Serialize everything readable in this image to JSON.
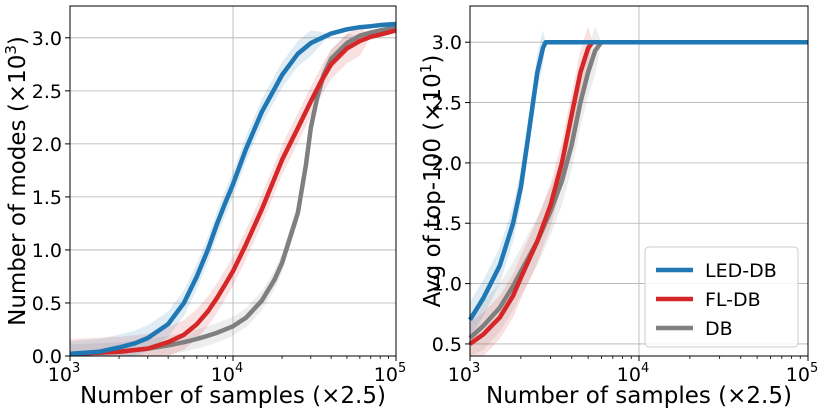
{
  "chart_data": [
    {
      "type": "line",
      "xscale": "log",
      "xlim": [
        1000,
        100000
      ],
      "ylim": [
        0,
        3.3
      ],
      "xticks": [
        1000,
        10000,
        100000
      ],
      "xtick_labels": [
        "10",
        "10",
        "10"
      ],
      "xtick_exps": [
        "3",
        "4",
        "5"
      ],
      "yticks": [
        0,
        0.5,
        1.0,
        1.5,
        2.0,
        2.5,
        3.0
      ],
      "ytick_labels": [
        "0.0",
        "0.5",
        "1.0",
        "1.5",
        "2.0",
        "2.5",
        "3.0"
      ],
      "xlabel": "Number of samples (×2.5)",
      "ylabel_pre": "Number of modes (×10",
      "ylabel_exp": "3",
      "ylabel_post": ")",
      "grid": true,
      "series": [
        {
          "name": "DB",
          "color": "#7f7f7f",
          "x": [
            1000,
            2000,
            3000,
            4000,
            5000,
            6000,
            7000,
            8000,
            10000,
            12000,
            15000,
            18000,
            20000,
            25000,
            28000,
            30000,
            33000,
            36000,
            40000,
            50000,
            60000,
            70000,
            80000,
            100000
          ],
          "y": [
            0.02,
            0.04,
            0.07,
            0.1,
            0.13,
            0.16,
            0.19,
            0.22,
            0.28,
            0.36,
            0.52,
            0.72,
            0.88,
            1.35,
            1.8,
            2.15,
            2.45,
            2.65,
            2.8,
            2.95,
            3.02,
            3.05,
            3.07,
            3.1
          ],
          "band": 0.09
        },
        {
          "name": "FL-DB",
          "color": "#d62728",
          "x": [
            1000,
            2000,
            3000,
            4000,
            5000,
            6000,
            7000,
            8000,
            9000,
            10000,
            12000,
            15000,
            20000,
            25000,
            30000,
            35000,
            40000,
            50000,
            60000,
            70000,
            80000,
            100000
          ],
          "y": [
            0.02,
            0.04,
            0.07,
            0.13,
            0.2,
            0.3,
            0.42,
            0.55,
            0.68,
            0.8,
            1.05,
            1.38,
            1.85,
            2.15,
            2.4,
            2.6,
            2.75,
            2.9,
            2.97,
            3.01,
            3.03,
            3.07
          ],
          "band": 0.14
        },
        {
          "name": "LED-DB",
          "color": "#1f77b4",
          "x": [
            1000,
            1500,
            2000,
            2500,
            3000,
            4000,
            5000,
            6000,
            7000,
            8000,
            9000,
            10000,
            12000,
            15000,
            20000,
            25000,
            30000,
            40000,
            50000,
            60000,
            70000,
            80000,
            100000
          ],
          "y": [
            0.02,
            0.04,
            0.08,
            0.12,
            0.17,
            0.3,
            0.5,
            0.75,
            1.0,
            1.25,
            1.45,
            1.62,
            1.95,
            2.3,
            2.65,
            2.85,
            2.95,
            3.04,
            3.08,
            3.1,
            3.11,
            3.12,
            3.13
          ],
          "band": 0.12
        }
      ]
    },
    {
      "type": "line",
      "xscale": "log",
      "xlim": [
        1000,
        100000
      ],
      "ylim": [
        0.4,
        3.3
      ],
      "xticks": [
        1000,
        10000,
        100000
      ],
      "xtick_labels": [
        "10",
        "10",
        "10"
      ],
      "xtick_exps": [
        "3",
        "4",
        "5"
      ],
      "yticks": [
        0.5,
        1.0,
        1.5,
        2.0,
        2.5,
        3.0
      ],
      "ytick_labels": [
        "0.5",
        "1.0",
        "1.5",
        "2.0",
        "2.5",
        "3.0"
      ],
      "xlabel": "Number of samples (×2.5)",
      "ylabel_pre": "Avg of top-100 (×10",
      "ylabel_exp": "1",
      "ylabel_post": ")",
      "grid": true,
      "legend_position": "lower-right",
      "series": [
        {
          "name": "DB",
          "color": "#7f7f7f",
          "x": [
            1000,
            1200,
            1500,
            1800,
            2000,
            2500,
            3000,
            3500,
            4000,
            4500,
            5000,
            5500,
            6000,
            100000
          ],
          "y": [
            0.55,
            0.65,
            0.8,
            0.98,
            1.1,
            1.35,
            1.6,
            1.85,
            2.15,
            2.5,
            2.75,
            2.93,
            3.0,
            3.0
          ],
          "band": 0.2
        },
        {
          "name": "FL-DB",
          "color": "#d62728",
          "x": [
            1000,
            1200,
            1500,
            1800,
            2000,
            2500,
            3000,
            3500,
            4000,
            4500,
            5000,
            5300,
            100000
          ],
          "y": [
            0.5,
            0.58,
            0.72,
            0.9,
            1.05,
            1.35,
            1.65,
            2.0,
            2.4,
            2.75,
            2.95,
            3.0,
            3.0
          ],
          "band": 0.18
        },
        {
          "name": "LED-DB",
          "color": "#1f77b4",
          "x": [
            1000,
            1200,
            1500,
            1800,
            2000,
            2200,
            2500,
            2700,
            2800,
            100000
          ],
          "y": [
            0.7,
            0.88,
            1.15,
            1.5,
            1.8,
            2.2,
            2.75,
            2.95,
            3.0,
            3.0
          ],
          "band": 0.15
        }
      ],
      "legend": [
        {
          "name": "LED-DB",
          "color": "#1f77b4"
        },
        {
          "name": "FL-DB",
          "color": "#d62728"
        },
        {
          "name": "DB",
          "color": "#7f7f7f"
        }
      ]
    }
  ]
}
